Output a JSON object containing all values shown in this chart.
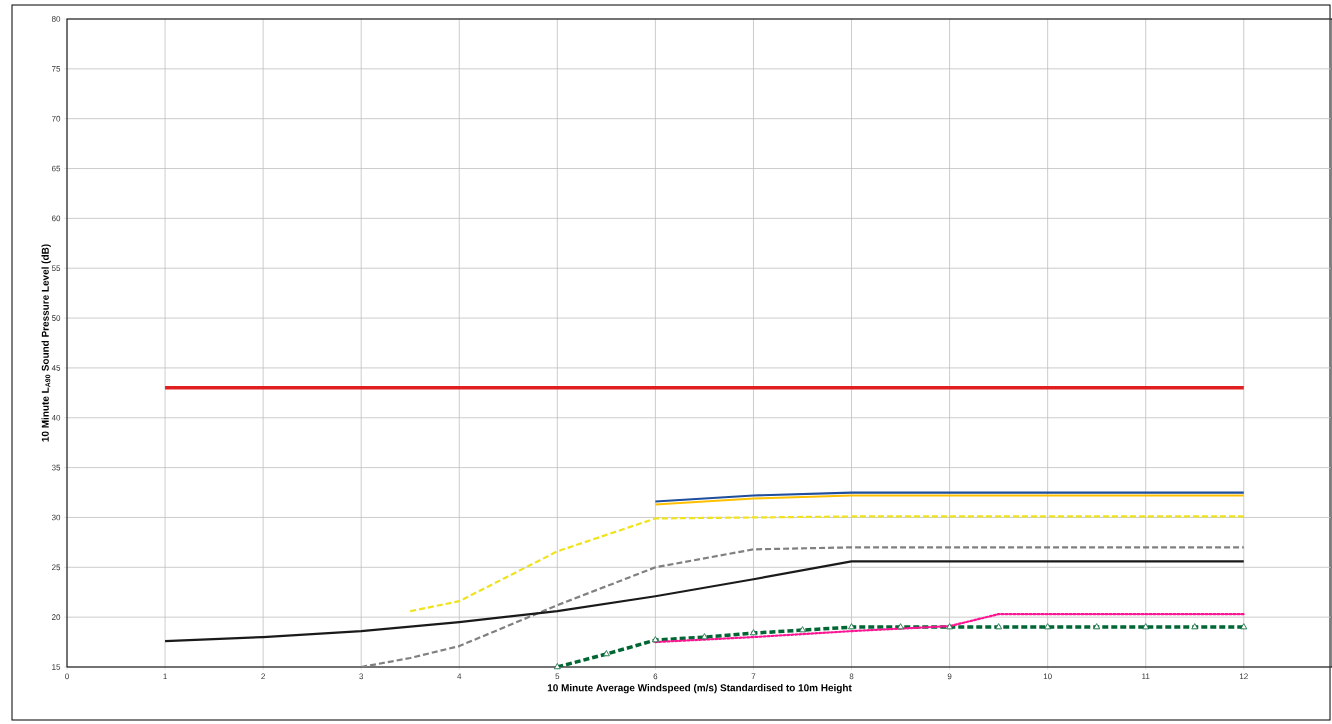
{
  "chart_data": {
    "type": "line",
    "xlabel": "10 Minute Average Windspeed (m/s) Standardised to 10m Height",
    "ylabel": "10 Minute L$_{A90}$ Sound Pressure Level (dB)",
    "xlim": [
      0,
      12.9
    ],
    "xticks": [
      0,
      1,
      2,
      3,
      4,
      5,
      6,
      7,
      8,
      9,
      10,
      11,
      12
    ],
    "ylim": [
      15,
      80
    ],
    "yticks": [
      15,
      20,
      25,
      30,
      35,
      40,
      45,
      50,
      55,
      60,
      65,
      70,
      75,
      80
    ],
    "grid": true,
    "series": [
      {
        "color": "#e02020",
        "line_style": "solid",
        "x": [
          1,
          12
        ],
        "values": [
          43,
          43
        ]
      },
      {
        "color": "#1f4e9c",
        "line_style": "solid",
        "x": [
          6,
          7,
          8,
          12
        ],
        "values": [
          31.6,
          32.2,
          32.5,
          32.5
        ]
      },
      {
        "color": "#ffc000",
        "line_style": "solid",
        "x": [
          6,
          7,
          8,
          12
        ],
        "values": [
          31.3,
          31.9,
          32.2,
          32.2
        ]
      },
      {
        "color": "#f0e31c",
        "line_style": "dashed",
        "x": [
          3.5,
          4,
          5,
          6,
          7,
          8,
          12
        ],
        "values": [
          20.6,
          21.6,
          26.6,
          29.9,
          30.0,
          30.1,
          30.1
        ]
      },
      {
        "color": "#808080",
        "line_style": "dashed",
        "x": [
          3,
          3.5,
          4,
          5,
          6,
          7,
          8,
          12
        ],
        "values": [
          15,
          15.9,
          17.1,
          21.2,
          25.0,
          26.8,
          27.0,
          27.0
        ]
      },
      {
        "color": "#1a1a1a",
        "line_style": "solid",
        "x": [
          1,
          2,
          3,
          4,
          5,
          6,
          7,
          8,
          12
        ],
        "values": [
          17.6,
          18.0,
          18.6,
          19.5,
          20.6,
          22.1,
          23.8,
          25.6,
          25.6
        ]
      },
      {
        "color": "#006633",
        "line_style": "dashed",
        "marker": "triangle",
        "x": [
          5,
          5.5,
          6,
          6.5,
          7,
          7.5,
          8,
          8.5,
          9,
          9.5,
          10,
          10.5,
          11,
          11.5,
          12
        ],
        "values": [
          15,
          16.3,
          17.7,
          18.0,
          18.4,
          18.7,
          19.0,
          19.0,
          19.0,
          19.0,
          19.0,
          19.0,
          19.0,
          19.0,
          19.0
        ]
      },
      {
        "color": "#ff1493",
        "line_style": "dotted",
        "x": [
          6,
          7,
          8,
          9,
          9.5,
          12
        ],
        "values": [
          17.5,
          18.0,
          18.6,
          19.1,
          20.3,
          20.3
        ]
      }
    ]
  }
}
